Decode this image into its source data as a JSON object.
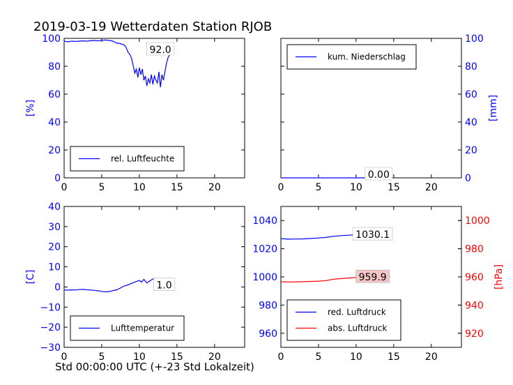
{
  "page": {
    "title": "2019-03-19 Wetterdaten Station RJOB",
    "xlabel": "Std 00:00:00 UTC (+-23 Std Lokalzeit)"
  },
  "colors": {
    "blue": "#0000ff",
    "red": "#ff0000",
    "annot_box_bg": "#ffffff",
    "annot_box_pink": "#f4c5c5"
  },
  "chart_data": [
    {
      "id": "humidity",
      "type": "line",
      "xlim": [
        0,
        24
      ],
      "ylim": [
        0,
        100
      ],
      "xticks": [
        0,
        5,
        10,
        15,
        20
      ],
      "yticks": [
        0,
        20,
        40,
        60,
        80,
        100
      ],
      "ylabel": "[%]",
      "legend_position": "lower-left",
      "series": [
        {
          "name": "rel. Luftfeuchte",
          "color": "blue",
          "x": [
            0,
            0.5,
            1,
            1.5,
            2,
            2.5,
            3,
            3.5,
            4,
            4.5,
            5,
            5.5,
            6,
            6.5,
            7,
            7.3,
            7.6,
            7.9,
            8.2,
            8.5,
            8.8,
            9,
            9.2,
            9.4,
            9.6,
            9.8,
            10,
            10.2,
            10.4,
            10.6,
            10.8,
            11,
            11.2,
            11.4,
            11.6,
            11.8,
            12,
            12.2,
            12.4,
            12.6,
            12.8,
            13,
            13.2,
            13.4,
            13.6,
            13.8,
            14,
            14.2,
            14.5
          ],
          "y": [
            98,
            97.5,
            98,
            97.8,
            98,
            98.2,
            98,
            98.3,
            98.5,
            98.2,
            98.6,
            98.8,
            98.5,
            98,
            96.5,
            96.5,
            96,
            95.5,
            94,
            90,
            88,
            85,
            80,
            75,
            78,
            72,
            79,
            74,
            78,
            70,
            73,
            66,
            71,
            68,
            74,
            67,
            73,
            70,
            68,
            76,
            65,
            74,
            70,
            76,
            82,
            86,
            88,
            90,
            92
          ]
        }
      ],
      "annotation": {
        "x": 12.8,
        "y": 92,
        "text": "92.0"
      }
    },
    {
      "id": "precipitation",
      "type": "line",
      "xlim": [
        0,
        24
      ],
      "ylim": [
        0,
        100
      ],
      "xticks": [
        0,
        5,
        10,
        15,
        20
      ],
      "yticks": [
        0,
        20,
        40,
        60,
        80,
        100
      ],
      "ylabel": "[mm]",
      "legend_position": "upper-left",
      "series": [
        {
          "name": "kum. Niederschlag",
          "color": "blue",
          "x": [
            0,
            14.5
          ],
          "y": [
            0,
            0
          ]
        }
      ],
      "annotation": {
        "x": 13,
        "y": 2.5,
        "text": "0.00"
      }
    },
    {
      "id": "temperature",
      "type": "line",
      "xlim": [
        0,
        24
      ],
      "ylim": [
        -30,
        40
      ],
      "xticks": [
        0,
        5,
        10,
        15,
        20
      ],
      "yticks": [
        -30,
        -20,
        -10,
        0,
        10,
        20,
        30,
        40
      ],
      "ylabel": "[C]",
      "legend_position": "lower-left",
      "series": [
        {
          "name": "Lufttemperatur",
          "color": "blue",
          "x": [
            0,
            0.5,
            1,
            1.5,
            2,
            2.5,
            3,
            3.5,
            4,
            4.5,
            5,
            5.5,
            6,
            6.5,
            7,
            7.5,
            8,
            8.5,
            9,
            9.5,
            10,
            10.3,
            10.6,
            11,
            11.4,
            11.8,
            12.2,
            12.6,
            13,
            13.4,
            13.8,
            14.2,
            14.5
          ],
          "y": [
            -1.5,
            -1.6,
            -1.4,
            -1.5,
            -1.3,
            -1.2,
            -1.4,
            -1.5,
            -1.7,
            -1.9,
            -2.2,
            -2.4,
            -2.3,
            -1.8,
            -1.4,
            -0.5,
            0.5,
            1.0,
            1.8,
            2.6,
            3.2,
            2.4,
            3.8,
            2.0,
            3.0,
            4.0,
            3.2,
            2.8,
            1.5,
            2.4,
            1.8,
            1.2,
            1.0
          ]
        }
      ],
      "annotation": {
        "x": 13.3,
        "y": 1.0,
        "text": "1.0"
      }
    },
    {
      "id": "pressure",
      "type": "line",
      "xlim": [
        0,
        24
      ],
      "ylim": [
        950,
        1050
      ],
      "ylim_right": [
        910,
        1010
      ],
      "xticks": [
        0,
        5,
        10,
        15,
        20
      ],
      "yticks": [
        960,
        980,
        1000,
        1020,
        1040
      ],
      "yticks_right": [
        920,
        940,
        960,
        980,
        1000
      ],
      "ylabel_right": "[hPa]",
      "legend_position": "lower-left",
      "series": [
        {
          "name": "red. Luftdruck",
          "color": "blue",
          "axis": "left",
          "x": [
            0,
            1,
            2,
            3,
            4,
            5,
            6,
            7,
            8,
            9,
            10,
            11,
            12,
            13,
            14,
            14.5
          ],
          "y": [
            1027.2,
            1026.8,
            1026.9,
            1027.0,
            1027.3,
            1027.6,
            1028.0,
            1028.8,
            1029.3,
            1029.6,
            1029.9,
            1030.1,
            1030.0,
            1030.2,
            1030.1,
            1030.1
          ]
        },
        {
          "name": "abs. Luftdruck",
          "color": "red",
          "axis": "right",
          "x": [
            0,
            1,
            2,
            3,
            4,
            5,
            6,
            7,
            8,
            9,
            10,
            11,
            12,
            13,
            14,
            14.5
          ],
          "y": [
            956.6,
            956.4,
            956.5,
            956.6,
            956.8,
            957.0,
            957.4,
            958.3,
            958.8,
            959.2,
            959.5,
            959.8,
            959.7,
            959.9,
            959.9,
            959.9
          ]
        }
      ],
      "annotations": [
        {
          "x": 12.2,
          "y": 1030.1,
          "axis": "left",
          "text": "1030.1",
          "box": "white"
        },
        {
          "x": 12.2,
          "y": 959.9,
          "axis": "right",
          "text": "959.9",
          "box": "pink"
        }
      ]
    }
  ]
}
